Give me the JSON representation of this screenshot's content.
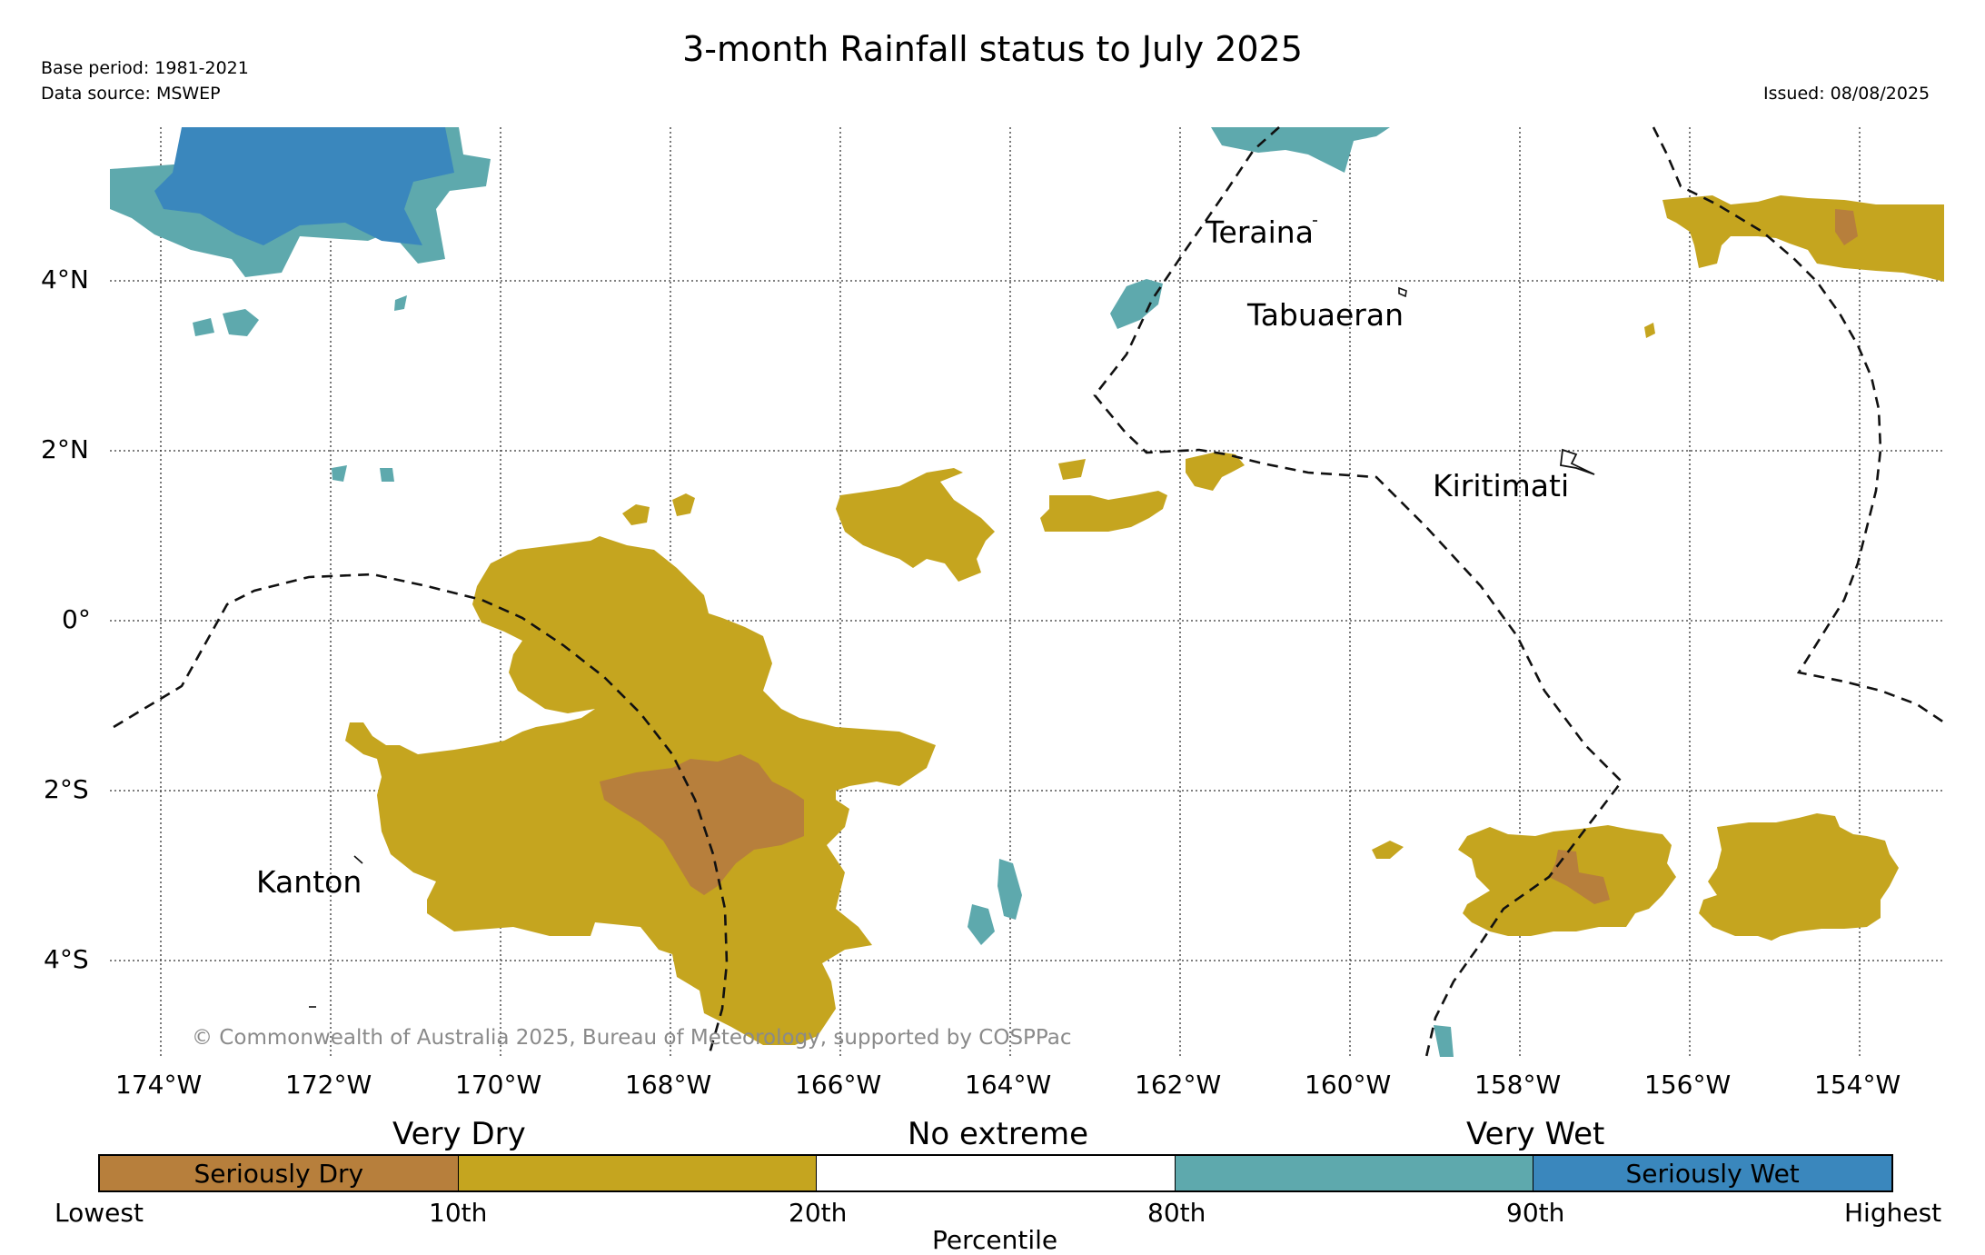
{
  "header": {
    "title": "3-month Rainfall status to July 2025",
    "base_period": "Base period: 1981-2021",
    "data_source": "Data source: MSWEP",
    "issued": "Issued: 08/08/2025"
  },
  "map": {
    "longitude_labels": [
      "174°W",
      "172°W",
      "170°W",
      "168°W",
      "166°W",
      "164°W",
      "162°W",
      "160°W",
      "158°W",
      "156°W",
      "154°W"
    ],
    "latitude_labels": [
      "4°N",
      "2°N",
      "0°",
      "2°S",
      "4°S"
    ],
    "places": [
      "Teraina",
      "Tabuaeran",
      "Kiritimati",
      "Kanton"
    ],
    "copyright": "© Commonwealth of Australia 2025, Bureau of Meteorology, supported by COSPPac",
    "grid": true
  },
  "legend": {
    "headers": [
      "Very Dry",
      "No extreme",
      "Very Wet"
    ],
    "bins": [
      {
        "label": "Seriously Dry",
        "color": "#b77f3c"
      },
      {
        "label": "",
        "color": "#c5a51f"
      },
      {
        "label": "",
        "color": "#ffffff"
      },
      {
        "label": "",
        "color": "#5ea9ad"
      },
      {
        "label": "Seriously Wet",
        "color": "#3a87bd"
      }
    ],
    "ticks": [
      "Lowest",
      "10th",
      "20th",
      "80th",
      "90th",
      "Highest"
    ],
    "axis_title": "Percentile"
  },
  "colors": {
    "seriously_dry": "#b77f3c",
    "very_dry": "#c5a51f",
    "very_wet": "#5ea9ad",
    "seriously_wet": "#3a87bd"
  }
}
